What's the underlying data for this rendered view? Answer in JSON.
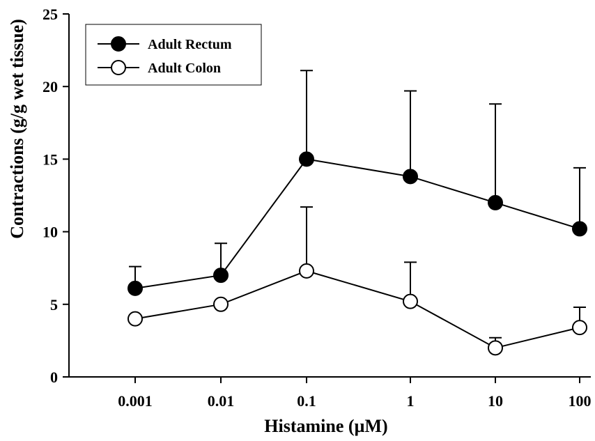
{
  "chart_data": {
    "type": "line",
    "title": "",
    "xlabel": "Histamine (µM)",
    "ylabel": "Contractions (g/g wet  tissue)",
    "x_scale": "log",
    "categories": [
      "0.001",
      "0.01",
      "0.1",
      "1",
      "10",
      "100"
    ],
    "ylim": [
      0,
      25
    ],
    "yticks": [
      "0",
      "5",
      "10",
      "15",
      "20",
      "25"
    ],
    "grid": false,
    "legend_position": "top-left",
    "series": [
      {
        "name": "Adult Rectum",
        "marker": "filled-circle",
        "color": "#000000",
        "values": [
          6.1,
          7.0,
          15.0,
          13.8,
          12.0,
          10.2
        ],
        "error_upper": [
          1.5,
          2.2,
          6.1,
          5.9,
          6.8,
          4.2
        ]
      },
      {
        "name": "Adult Colon",
        "marker": "open-circle",
        "color": "#000000",
        "values": [
          4.0,
          5.0,
          7.3,
          5.2,
          2.0,
          3.4
        ],
        "error_upper": [
          0,
          0,
          4.4,
          2.7,
          0.7,
          1.4
        ]
      }
    ]
  }
}
